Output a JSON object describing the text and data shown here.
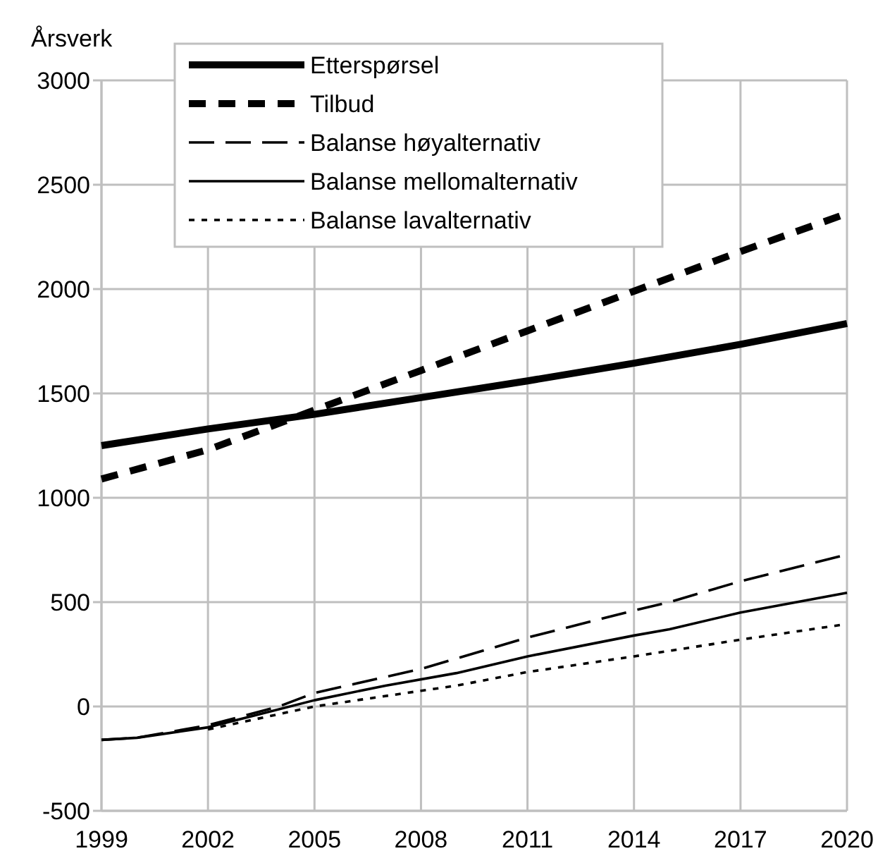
{
  "chart_data": {
    "type": "line",
    "ylabel": "Årsverk",
    "xlim": [
      1999,
      2020
    ],
    "xticks": [
      1999,
      2002,
      2005,
      2008,
      2011,
      2014,
      2017,
      2020
    ],
    "ylim": [
      -500,
      3000
    ],
    "yticks": [
      -500,
      0,
      500,
      1000,
      1500,
      2000,
      2500,
      3000
    ],
    "grid": true,
    "legend": "top left",
    "series": [
      {
        "name": "Etterspørsel",
        "color": "#000000",
        "line_style": "solid",
        "x": [
          1999,
          2002,
          2005,
          2008,
          2011,
          2014,
          2017,
          2020
        ],
        "values": [
          1250,
          1330,
          1400,
          1480,
          1560,
          1645,
          1735,
          1835
        ]
      },
      {
        "name": "Tilbud",
        "color": "#000000",
        "line_style": "dashed",
        "x": [
          1999,
          2002,
          2005,
          2008,
          2011,
          2014,
          2017,
          2019.8
        ],
        "values": [
          1090,
          1230,
          1420,
          1610,
          1800,
          1990,
          2180,
          2350
        ]
      },
      {
        "name": "Balanse høyalternativ",
        "color": "#000000",
        "line_style": "dashed",
        "x": [
          1999,
          2000,
          2002,
          2004,
          2005,
          2008,
          2011,
          2014,
          2015,
          2017,
          2019.8
        ],
        "values": [
          -160,
          -150,
          -90,
          0,
          65,
          180,
          330,
          460,
          500,
          600,
          720
        ]
      },
      {
        "name": "Balanse mellomalternativ",
        "color": "#000000",
        "line_style": "solid",
        "x": [
          1999,
          2000,
          2002,
          2005,
          2007,
          2009,
          2011,
          2014,
          2015,
          2017,
          2020
        ],
        "values": [
          -160,
          -150,
          -100,
          30,
          100,
          160,
          240,
          340,
          370,
          450,
          545
        ]
      },
      {
        "name": "Balanse lavalternativ",
        "color": "#000000",
        "line_style": "dotted",
        "x": [
          2002,
          2005,
          2008,
          2009,
          2011,
          2014,
          2017,
          2019.8
        ],
        "values": [
          -110,
          0,
          75,
          100,
          165,
          240,
          320,
          390
        ]
      }
    ]
  }
}
